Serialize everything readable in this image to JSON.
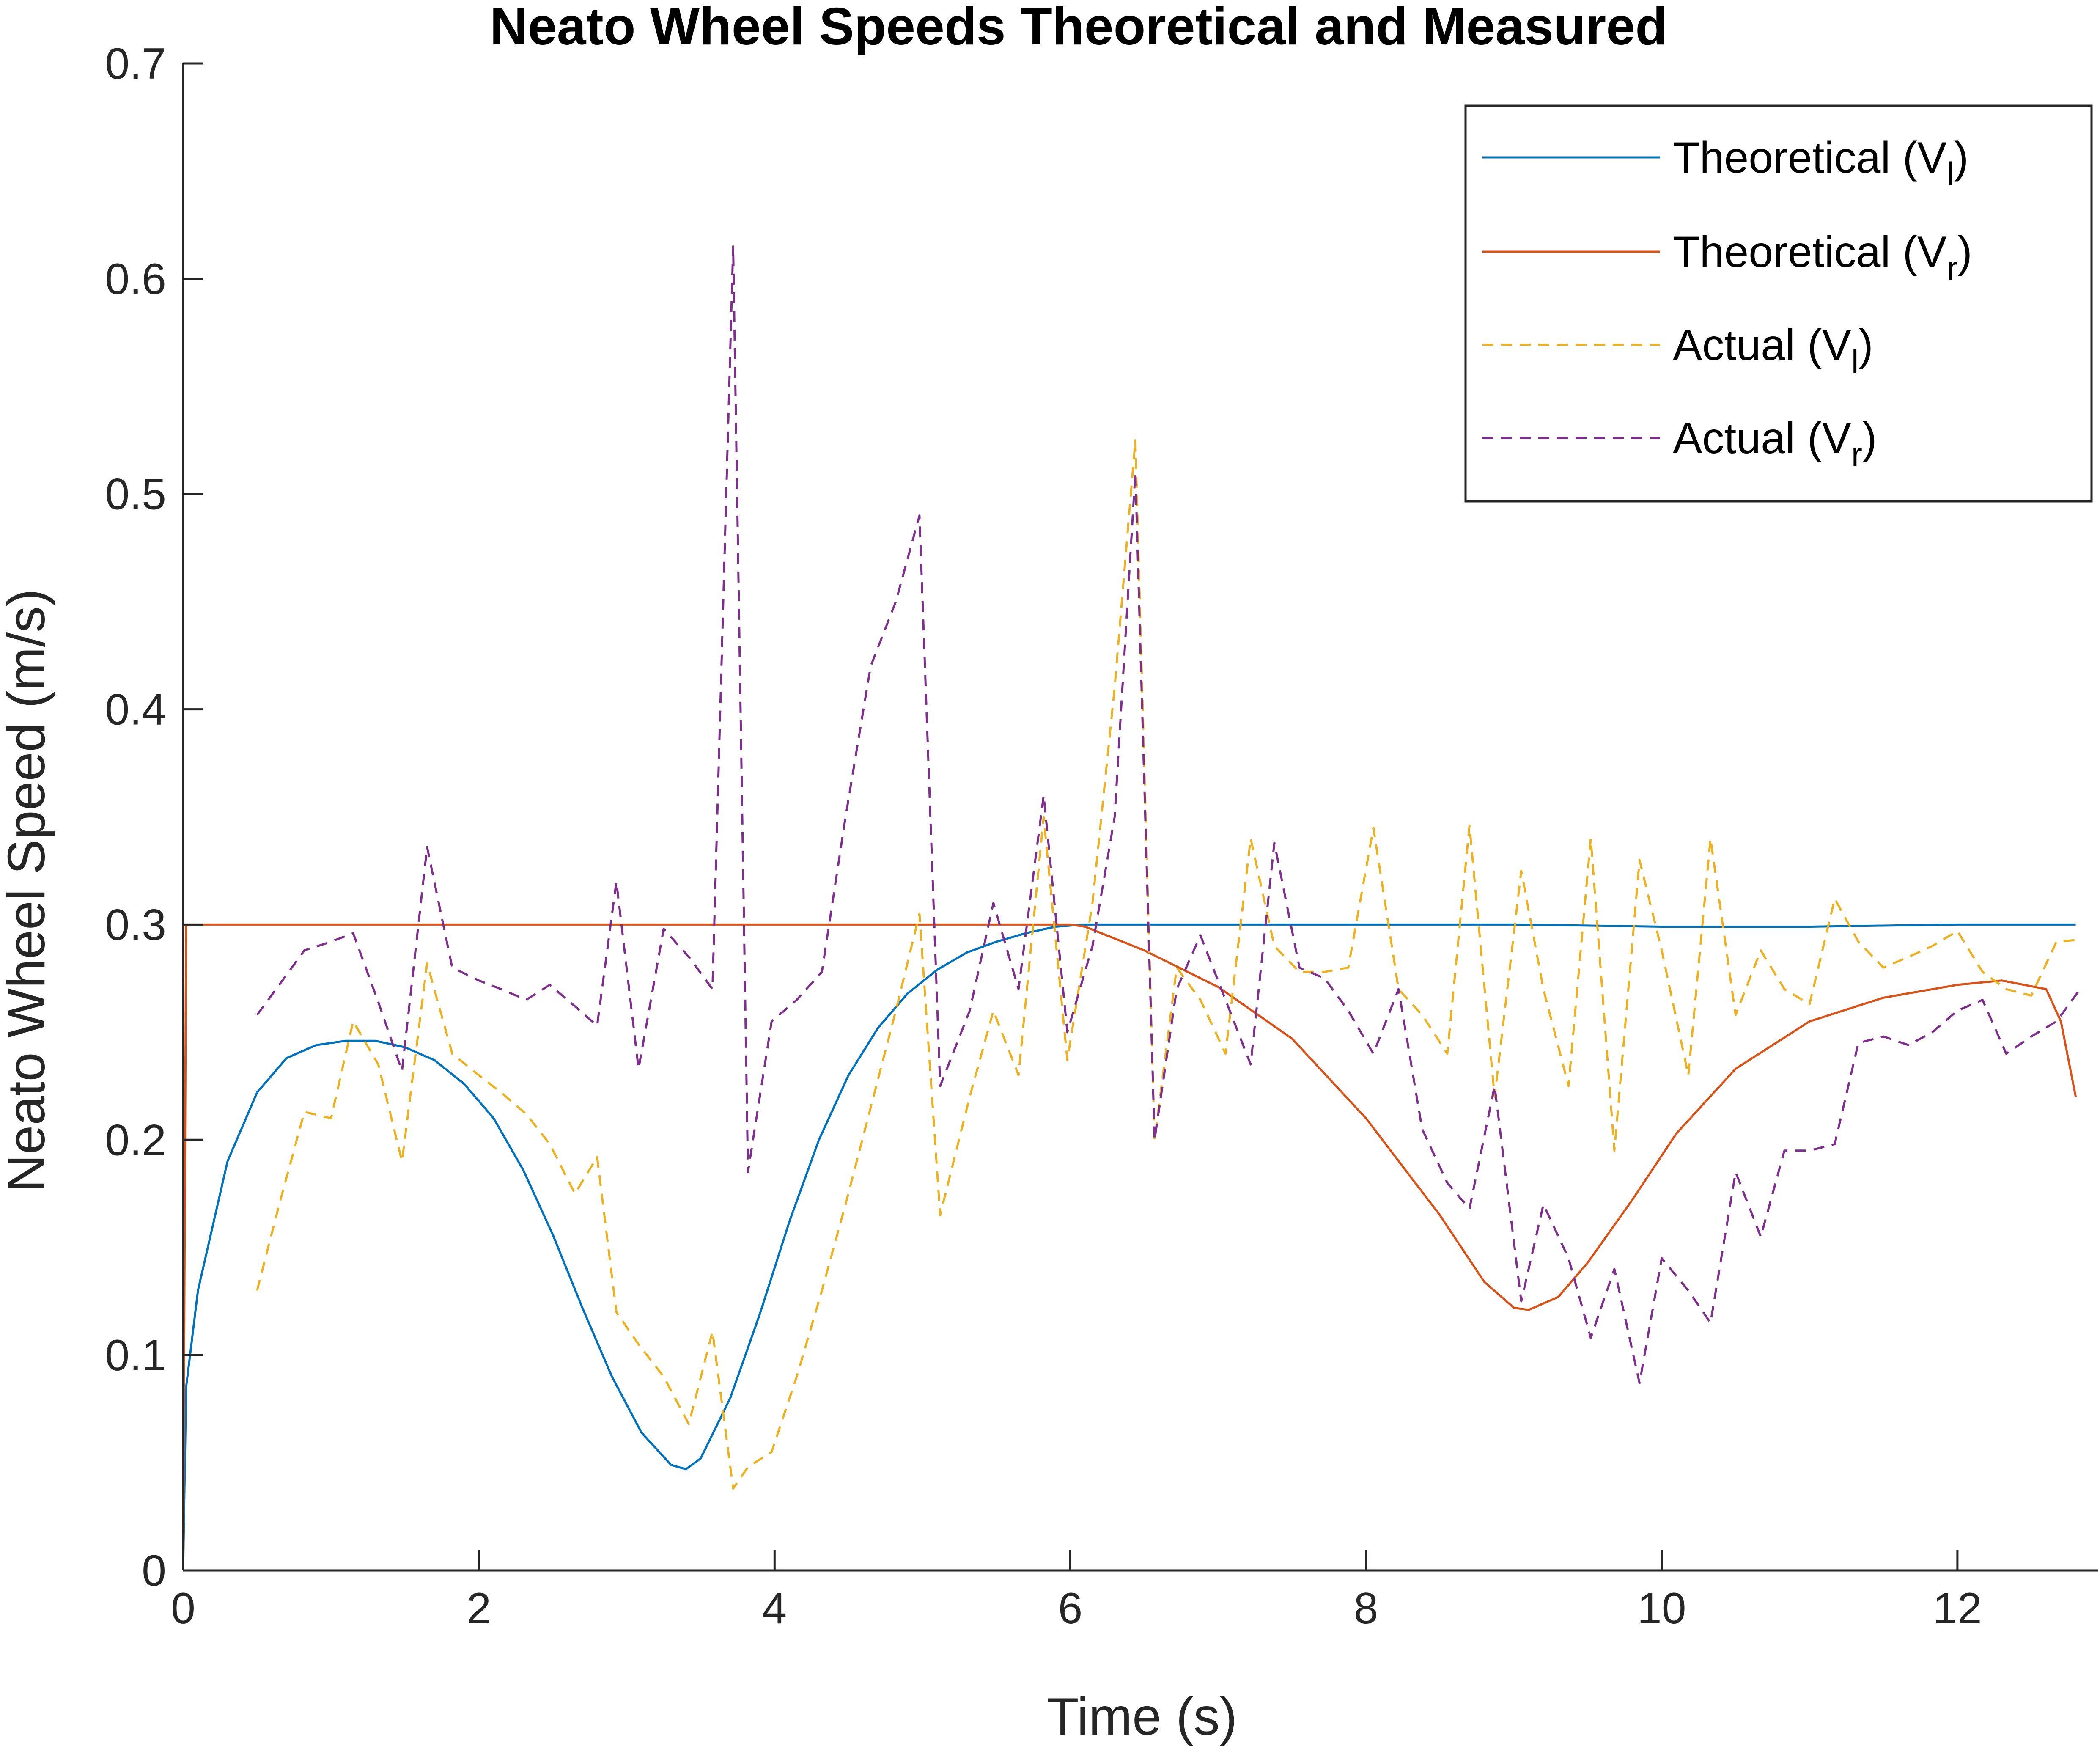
{
  "chart_data": {
    "type": "line",
    "title": "Neato Wheel Speeds Theoretical and Measured",
    "xlabel": "Time (s)",
    "ylabel": "Neato Wheel Speed (m/s)",
    "xlim": [
      0,
      12.95
    ],
    "ylim": [
      0,
      0.7
    ],
    "xticks": [
      0,
      2,
      4,
      6,
      8,
      10,
      12
    ],
    "yticks": [
      0,
      0.1,
      0.2,
      0.3,
      0.4,
      0.5,
      0.6,
      0.7
    ],
    "xtick_labels": [
      "0",
      "2",
      "4",
      "6",
      "8",
      "10",
      "12"
    ],
    "ytick_labels": [
      "0",
      "0.1",
      "0.2",
      "0.3",
      "0.4",
      "0.5",
      "0.6",
      "0.7"
    ],
    "grid": false,
    "legend_position": "top-right",
    "series": [
      {
        "name": "Theoretical (V",
        "name_sub": "l",
        "name_end": ")",
        "color": "#0072BD",
        "dash": "solid",
        "x": [
          0,
          0.02,
          0.1,
          0.3,
          0.5,
          0.7,
          0.9,
          1.1,
          1.3,
          1.5,
          1.7,
          1.9,
          2.1,
          2.3,
          2.5,
          2.7,
          2.9,
          3.1,
          3.3,
          3.4,
          3.5,
          3.7,
          3.9,
          4.1,
          4.3,
          4.5,
          4.7,
          4.9,
          5.1,
          5.3,
          5.5,
          5.7,
          5.9,
          6.1,
          6.3,
          6.5,
          7,
          8,
          9,
          10,
          11,
          12,
          12.8
        ],
        "y": [
          0,
          0.085,
          0.13,
          0.19,
          0.222,
          0.238,
          0.244,
          0.246,
          0.246,
          0.243,
          0.237,
          0.226,
          0.21,
          0.186,
          0.156,
          0.122,
          0.09,
          0.064,
          0.049,
          0.047,
          0.052,
          0.08,
          0.119,
          0.162,
          0.2,
          0.23,
          0.252,
          0.268,
          0.279,
          0.287,
          0.292,
          0.296,
          0.299,
          0.3,
          0.3,
          0.3,
          0.3,
          0.3,
          0.3,
          0.299,
          0.299,
          0.3,
          0.3
        ]
      },
      {
        "name": "Theoretical (V",
        "name_sub": "r",
        "name_end": ")",
        "color": "#D95319",
        "dash": "solid",
        "x": [
          0,
          0.02,
          0.05,
          1,
          2,
          3,
          4,
          5,
          6,
          6.1,
          6.5,
          7,
          7.5,
          8,
          8.5,
          8.8,
          9,
          9.1,
          9.3,
          9.5,
          9.8,
          10.1,
          10.5,
          11,
          11.5,
          12,
          12.3,
          12.6,
          12.7,
          12.8
        ],
        "y": [
          0,
          0.3,
          0.3,
          0.3,
          0.3,
          0.3,
          0.3,
          0.3,
          0.3,
          0.299,
          0.288,
          0.271,
          0.247,
          0.21,
          0.165,
          0.134,
          0.122,
          0.121,
          0.127,
          0.143,
          0.172,
          0.203,
          0.233,
          0.255,
          0.266,
          0.272,
          0.274,
          0.27,
          0.255,
          0.22
        ]
      },
      {
        "name": "Actual (V",
        "name_sub": "l",
        "name_end": ")",
        "color": "#EDB120",
        "dash": "dashed",
        "x": [
          0.5,
          0.65,
          0.82,
          1.0,
          1.15,
          1.32,
          1.48,
          1.65,
          1.82,
          2.0,
          2.15,
          2.32,
          2.48,
          2.65,
          2.8,
          2.93,
          3.08,
          3.25,
          3.42,
          3.58,
          3.72,
          3.82,
          3.98,
          4.15,
          4.32,
          4.48,
          4.65,
          4.82,
          4.98,
          5.12,
          5.32,
          5.48,
          5.65,
          5.82,
          5.98,
          6.15,
          6.3,
          6.44,
          6.57,
          6.72,
          6.88,
          7.05,
          7.22,
          7.38,
          7.55,
          7.72,
          7.88,
          8.05,
          8.22,
          8.38,
          8.55,
          8.7,
          8.87,
          9.05,
          9.2,
          9.37,
          9.52,
          9.68,
          9.85,
          10.0,
          10.18,
          10.33,
          10.5,
          10.67,
          10.83,
          11.0,
          11.17,
          11.33,
          11.5,
          11.67,
          11.83,
          12.0,
          12.17,
          12.33,
          12.5,
          12.67,
          12.83
        ],
        "y": [
          0.13,
          0.17,
          0.213,
          0.21,
          0.255,
          0.235,
          0.19,
          0.282,
          0.24,
          0.23,
          0.222,
          0.212,
          0.198,
          0.175,
          0.192,
          0.12,
          0.105,
          0.09,
          0.068,
          0.111,
          0.038,
          0.048,
          0.055,
          0.09,
          0.13,
          0.17,
          0.215,
          0.26,
          0.305,
          0.165,
          0.22,
          0.26,
          0.23,
          0.35,
          0.237,
          0.31,
          0.41,
          0.525,
          0.2,
          0.28,
          0.265,
          0.24,
          0.34,
          0.29,
          0.278,
          0.278,
          0.28,
          0.345,
          0.27,
          0.258,
          0.24,
          0.346,
          0.22,
          0.325,
          0.27,
          0.225,
          0.34,
          0.195,
          0.33,
          0.288,
          0.23,
          0.34,
          0.258,
          0.288,
          0.27,
          0.263,
          0.312,
          0.292,
          0.28,
          0.285,
          0.29,
          0.297,
          0.278,
          0.27,
          0.267,
          0.292,
          0.293
        ]
      },
      {
        "name": "Actual (V",
        "name_sub": "r",
        "name_end": ")",
        "color": "#7E2F8E",
        "dash": "dashed",
        "x": [
          0.5,
          0.65,
          0.82,
          1.0,
          1.15,
          1.32,
          1.48,
          1.65,
          1.82,
          2.0,
          2.15,
          2.32,
          2.48,
          2.65,
          2.8,
          2.93,
          3.08,
          3.25,
          3.42,
          3.58,
          3.72,
          3.82,
          3.98,
          4.15,
          4.32,
          4.48,
          4.65,
          4.82,
          4.98,
          5.12,
          5.32,
          5.48,
          5.65,
          5.82,
          5.98,
          6.15,
          6.3,
          6.44,
          6.57,
          6.72,
          6.88,
          7.05,
          7.22,
          7.38,
          7.55,
          7.72,
          7.88,
          8.05,
          8.22,
          8.38,
          8.55,
          8.7,
          8.87,
          9.05,
          9.2,
          9.37,
          9.52,
          9.68,
          9.85,
          10.0,
          10.18,
          10.33,
          10.5,
          10.67,
          10.83,
          11.0,
          11.17,
          11.33,
          11.5,
          11.67,
          11.83,
          12.0,
          12.17,
          12.33,
          12.5,
          12.67,
          12.83
        ],
        "y": [
          0.258,
          0.272,
          0.288,
          0.292,
          0.296,
          0.264,
          0.232,
          0.336,
          0.28,
          0.274,
          0.27,
          0.265,
          0.272,
          0.262,
          0.253,
          0.32,
          0.233,
          0.298,
          0.285,
          0.27,
          0.615,
          0.185,
          0.255,
          0.265,
          0.278,
          0.35,
          0.42,
          0.45,
          0.49,
          0.225,
          0.26,
          0.31,
          0.27,
          0.36,
          0.25,
          0.29,
          0.35,
          0.51,
          0.2,
          0.27,
          0.295,
          0.265,
          0.235,
          0.338,
          0.28,
          0.275,
          0.26,
          0.24,
          0.27,
          0.205,
          0.18,
          0.168,
          0.225,
          0.125,
          0.17,
          0.145,
          0.108,
          0.14,
          0.087,
          0.145,
          0.13,
          0.115,
          0.185,
          0.155,
          0.195,
          0.195,
          0.198,
          0.245,
          0.248,
          0.244,
          0.25,
          0.26,
          0.265,
          0.24,
          0.248,
          0.255,
          0.27
        ]
      }
    ]
  }
}
